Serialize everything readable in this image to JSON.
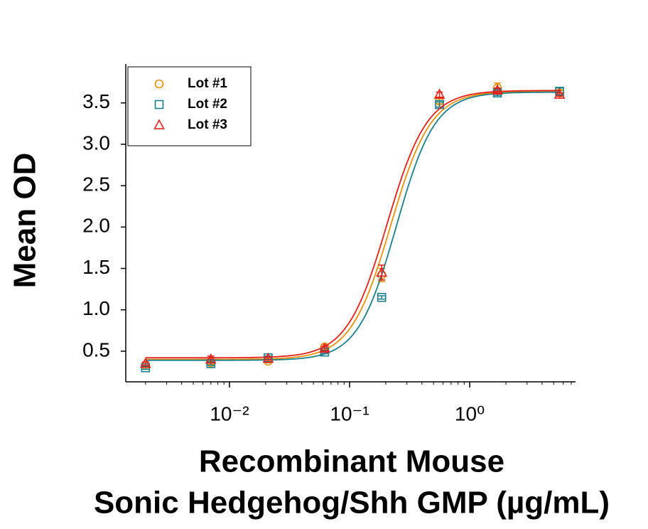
{
  "chart_data": {
    "type": "scatter",
    "xscale": "log",
    "xlabel": [
      "Recombinant Mouse",
      "Sonic Hedgehog/Shh GMP (µg/mL)"
    ],
    "ylabel": "Mean OD",
    "xlim": [
      0.00137,
      7.6
    ],
    "ylim": [
      0.13,
      3.97
    ],
    "xticks": [
      {
        "value": 0.01,
        "label": "10⁻²"
      },
      {
        "value": 0.1,
        "label": "10⁻¹"
      },
      {
        "value": 1,
        "label": "10⁰"
      }
    ],
    "yticks": [
      0.5,
      {
        "value": 1,
        "label": "1.0"
      },
      1.5,
      {
        "value": 2,
        "label": "2.0"
      },
      2.5,
      {
        "value": 3,
        "label": "3.0"
      },
      3.5
    ],
    "legend": "upper left",
    "x": [
      0.002,
      0.007,
      0.021,
      0.062,
      0.185,
      0.56,
      1.7,
      5.6
    ],
    "series": [
      {
        "name": "Lot #1",
        "color": "#e8900a",
        "marker": "circle",
        "values": [
          0.33,
          0.36,
          0.38,
          0.55,
          1.42,
          3.52,
          3.68,
          3.62
        ],
        "errors": [
          0.02,
          0.02,
          0.02,
          0.03,
          0.08,
          0.03,
          0.06,
          0.03
        ],
        "fit": {
          "bottom": 0.4,
          "top": 3.64,
          "ec50": 0.22,
          "hill": 2.6
        }
      },
      {
        "name": "Lot #2",
        "color": "#1a7f8a",
        "marker": "square",
        "values": [
          0.3,
          0.35,
          0.42,
          0.49,
          1.15,
          3.48,
          3.62,
          3.64
        ],
        "errors": [
          0.02,
          0.02,
          0.02,
          0.02,
          0.02,
          0.03,
          0.03,
          0.04
        ],
        "fit": {
          "bottom": 0.39,
          "top": 3.63,
          "ec50": 0.245,
          "hill": 2.7
        }
      },
      {
        "name": "Lot #3",
        "color": "#e0201a",
        "marker": "triangle",
        "values": [
          0.35,
          0.4,
          0.41,
          0.53,
          1.45,
          3.6,
          3.65,
          3.6
        ],
        "errors": [
          0.02,
          0.04,
          0.02,
          0.03,
          0.09,
          0.03,
          0.03,
          0.02
        ],
        "fit": {
          "bottom": 0.42,
          "top": 3.65,
          "ec50": 0.205,
          "hill": 2.6
        }
      }
    ]
  }
}
